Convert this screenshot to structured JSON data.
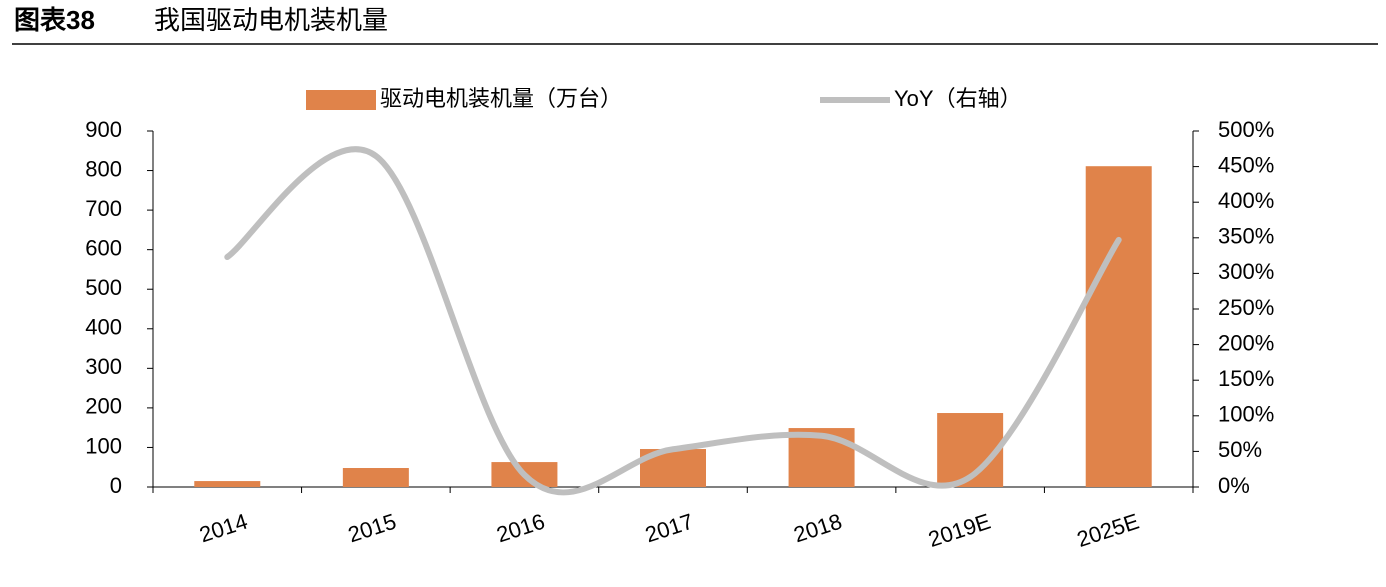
{
  "header": {
    "label": "图表38",
    "title": "我国驱动电机装机量"
  },
  "chart_data": {
    "type": "bar-line",
    "categories": [
      "2014",
      "2015",
      "2016",
      "2017",
      "2018",
      "2019E",
      "2025E"
    ],
    "series": [
      {
        "name": "驱动电机装机量（万台）",
        "type": "bar",
        "color": "#e0834a",
        "values": [
          15,
          48,
          63,
          96,
          149,
          187,
          811
        ]
      },
      {
        "name": "YoY（右轴）",
        "type": "line",
        "axis": "y2",
        "color": "#bfbfbf",
        "values": [
          323,
          465,
          17,
          53,
          72,
          14,
          347
        ]
      }
    ],
    "ylim": [
      0,
      900
    ],
    "yticks": [
      0,
      100,
      200,
      300,
      400,
      500,
      600,
      700,
      800,
      900
    ],
    "y2lim": [
      0,
      500
    ],
    "y2ticks": [
      {
        "value": 0,
        "label": "0%"
      },
      {
        "value": 50,
        "label": "50%"
      },
      {
        "value": 100,
        "label": "100%"
      },
      {
        "value": 150,
        "label": "150%"
      },
      {
        "value": 200,
        "label": "200%"
      },
      {
        "value": 250,
        "label": "250%"
      },
      {
        "value": 300,
        "label": "300%"
      },
      {
        "value": 350,
        "label": "350%"
      },
      {
        "value": 400,
        "label": "400%"
      },
      {
        "value": 450,
        "label": "450%"
      },
      {
        "value": 500,
        "label": "500%"
      }
    ],
    "legend": "top",
    "smooth": true
  }
}
